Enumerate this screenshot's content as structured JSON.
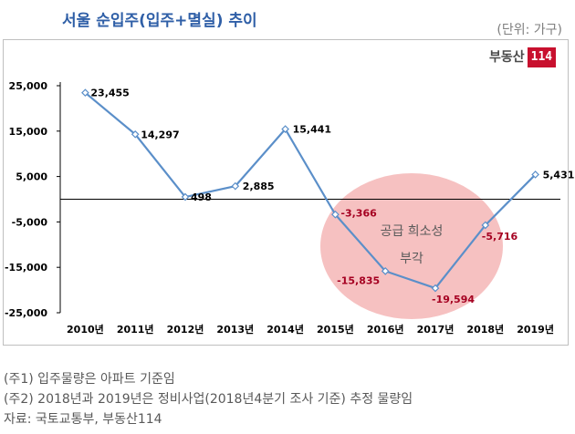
{
  "header": {
    "title": "서울 순입주(입주+멸실) 추이",
    "unit": "(단위: 가구)",
    "logo_text": "부동산",
    "logo_num": "114"
  },
  "notes": [
    "(주1) 입주물량은 아파트 기준임",
    "(주2) 2018년과 2019년은 정비사업(2018년4분기 조사 기준) 추정 물량임",
    "자료: 국토교통부, 부동산114"
  ],
  "chart_data": {
    "type": "line",
    "title": "서울 순입주(입주+멸실) 추이",
    "xlabel": "",
    "ylabel": "",
    "categories": [
      "2010년",
      "2011년",
      "2012년",
      "2013년",
      "2014년",
      "2015년",
      "2016년",
      "2017년",
      "2018년",
      "2019년"
    ],
    "values": [
      23455,
      14297,
      498,
      2885,
      15441,
      -3366,
      -15835,
      -19594,
      -5716,
      5431
    ],
    "data_labels": [
      "23,455",
      "14,297",
      "498",
      "2,885",
      "15,441",
      "-3,366",
      "-15,835",
      "-19,594",
      "-5,716",
      "5,431"
    ],
    "yticks": [
      25000,
      15000,
      5000,
      -5000,
      -15000,
      -25000
    ],
    "ytick_labels": [
      "25,000",
      "15,000",
      "5,000",
      "-5,000",
      "-15,000",
      "-25,000"
    ],
    "ylim": [
      -25000,
      25000
    ],
    "grid": false,
    "line_color": "#5b8fc9",
    "negative_label_color": "#a50021",
    "positive_label_color": "#000000",
    "annotation": {
      "line1": "공급 희소성",
      "line2": "부각",
      "fill_color": "#f4b6b6"
    }
  }
}
